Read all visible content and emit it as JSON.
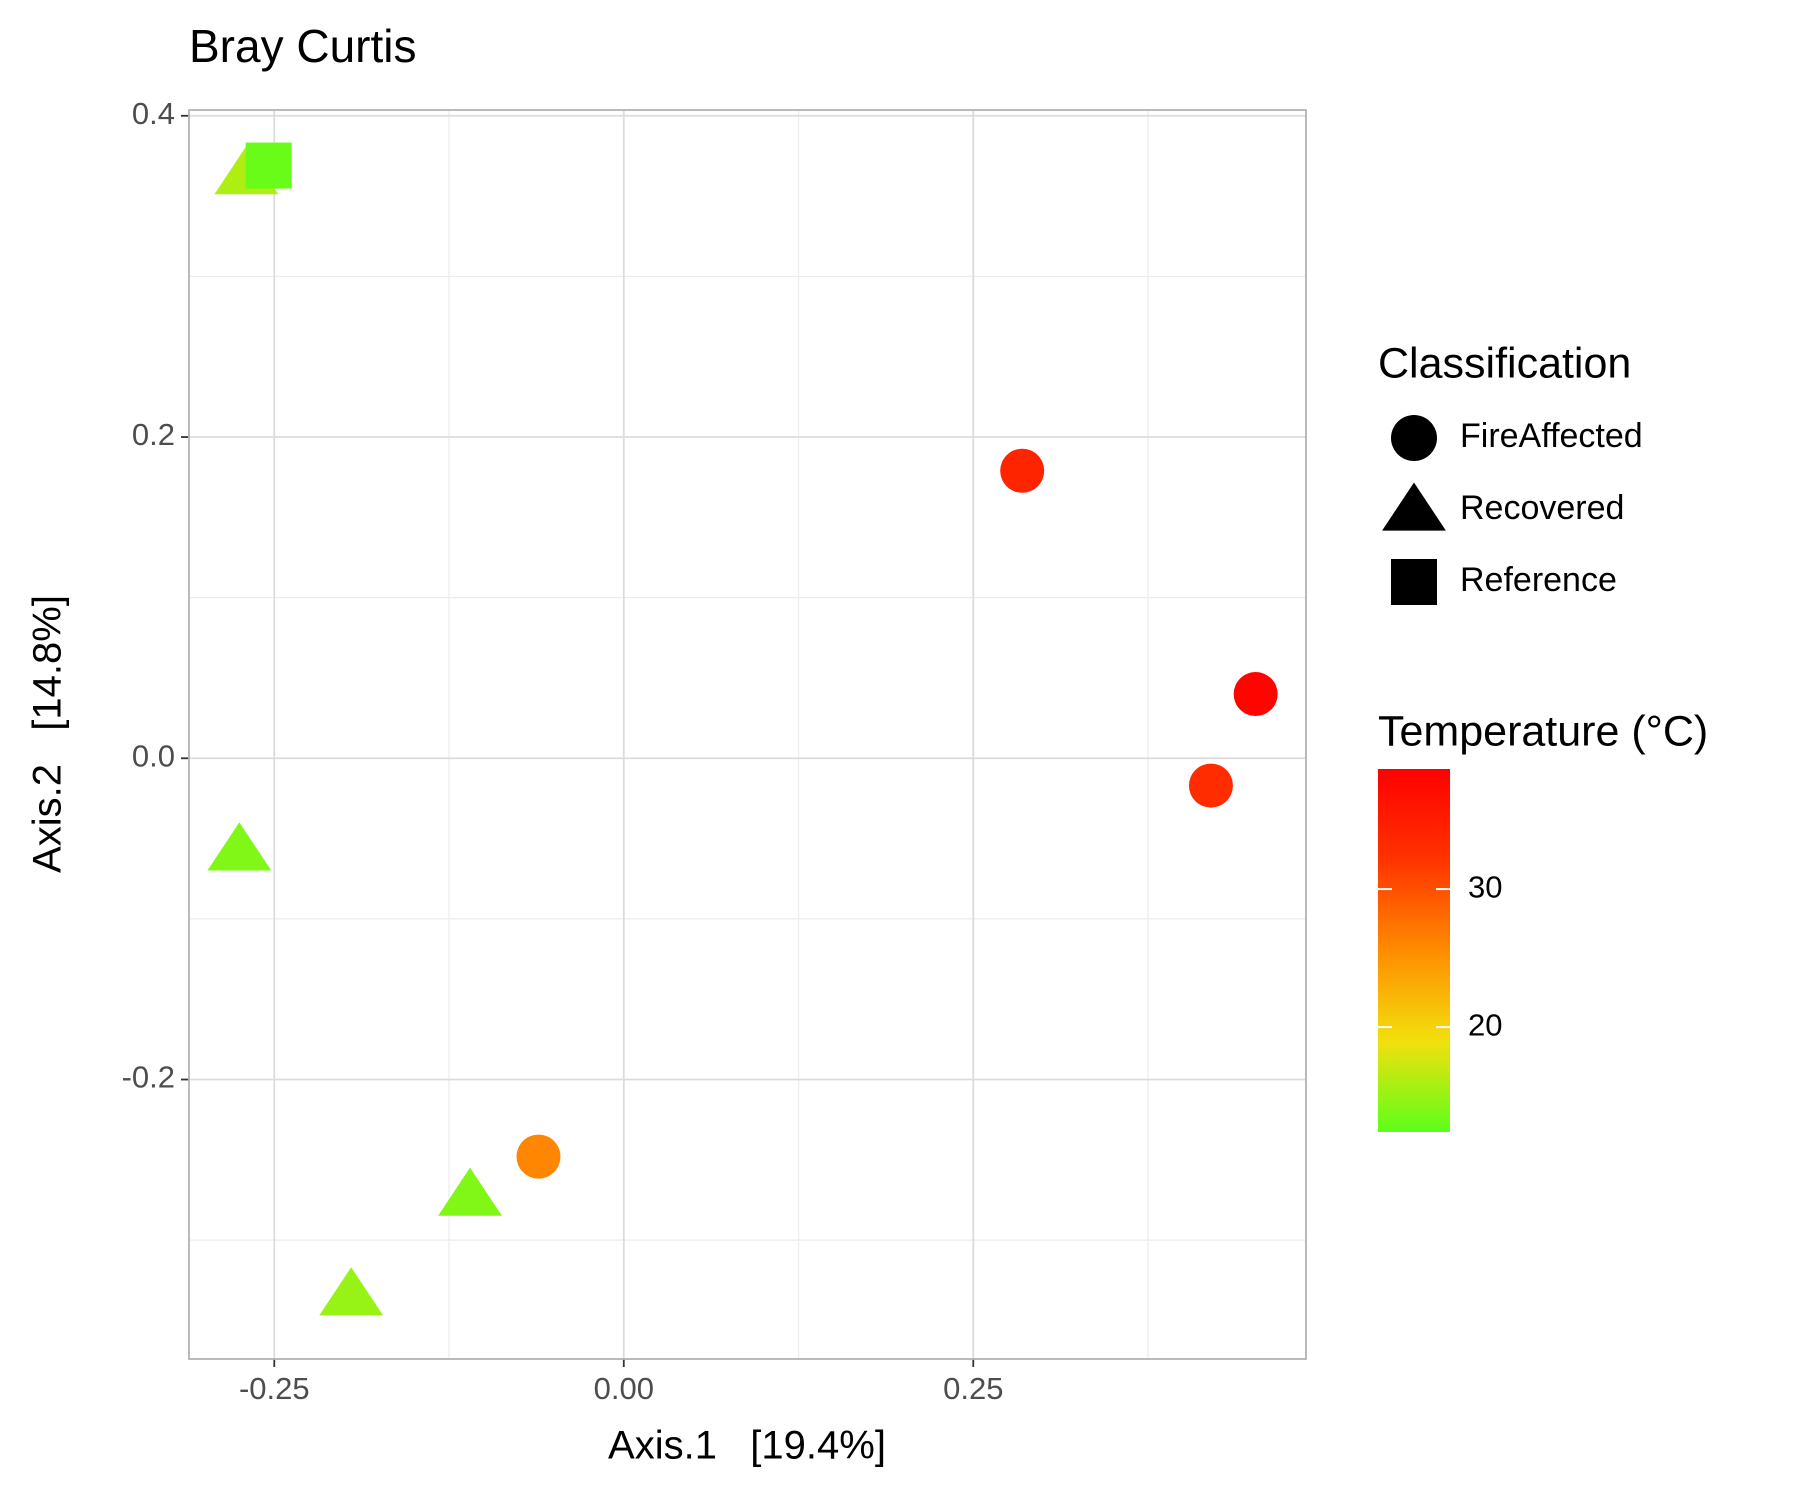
{
  "chart_data": {
    "type": "scatter",
    "title": "Bray Curtis",
    "x_label": "Axis.1   [19.4%]",
    "y_label": "Axis.2   [14.8%]",
    "xlim": [
      -0.311,
      0.488
    ],
    "ylim": [
      -0.374,
      0.4036
    ],
    "xticks": [
      {
        "value": -0.25,
        "label": "-0.25"
      },
      {
        "value": 0,
        "label": "0.00"
      },
      {
        "value": 0.25,
        "label": "0.25"
      }
    ],
    "yticks": [
      {
        "value": -0.2,
        "label": "-0.2"
      },
      {
        "value": 0,
        "label": "0.0"
      },
      0.2,
      0.4
    ],
    "grid": true,
    "shape_legend_title": "Classification",
    "series": [
      {
        "name": "FireAffected",
        "shape": "circle",
        "x": [
          0.285,
          0.452,
          0.42,
          -0.061
        ],
        "y": [
          0.179,
          0.04,
          -0.017,
          -0.248
        ],
        "temperature": [
          34,
          38,
          33,
          26
        ]
      },
      {
        "name": "Recovered",
        "shape": "triangle",
        "x": [
          -0.27,
          -0.275,
          -0.11,
          -0.195
        ],
        "y": [
          0.364,
          -0.057,
          -0.272,
          -0.334
        ],
        "temperature": [
          16,
          14,
          14,
          15
        ]
      },
      {
        "name": "Reference",
        "shape": "square",
        "x": [
          -0.254
        ],
        "y": [
          0.369
        ],
        "temperature": [
          13
        ]
      }
    ],
    "color_legend_title": "Temperature (°C)",
    "clim": [
      12.4,
      38.7
    ],
    "cticks": [
      20,
      30
    ],
    "colors": [
      "#5cff1a",
      "#f2e00d",
      "#ff8c00",
      "#ff3300",
      "#ff0000"
    ]
  }
}
